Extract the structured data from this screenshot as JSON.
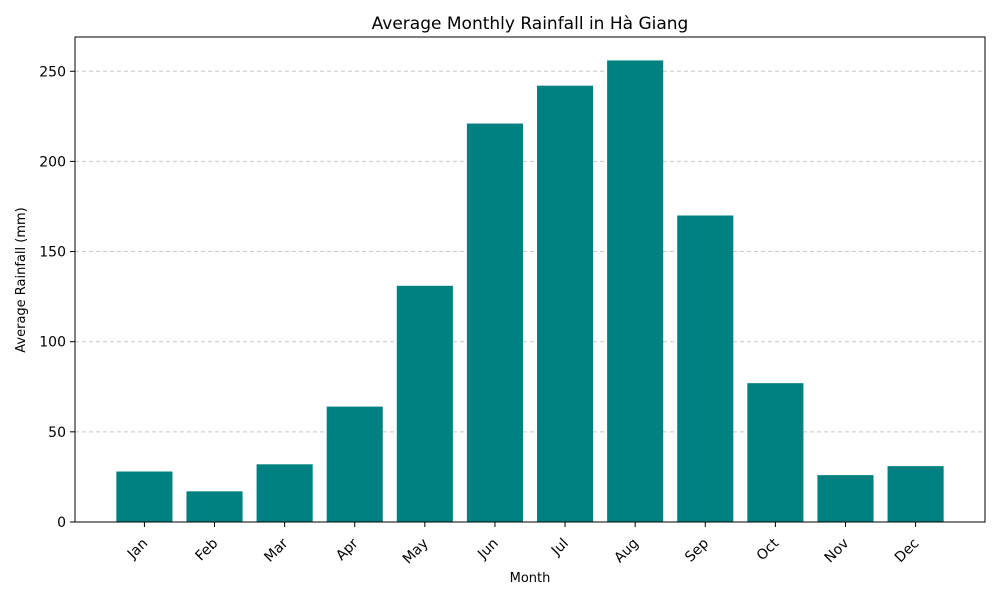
{
  "chart_data": {
    "type": "bar",
    "title": "Average Monthly Rainfall in Hà Giang",
    "xlabel": "Month",
    "ylabel": "Average Rainfall (mm)",
    "categories": [
      "Jan",
      "Feb",
      "Mar",
      "Apr",
      "May",
      "Jun",
      "Jul",
      "Aug",
      "Sep",
      "Oct",
      "Nov",
      "Dec"
    ],
    "values": [
      28,
      17,
      32,
      64,
      131,
      221,
      242,
      256,
      170,
      77,
      26,
      31
    ],
    "ylim": [
      0,
      269
    ],
    "yticks": [
      0,
      50,
      100,
      150,
      200,
      250
    ],
    "grid": "y dashed",
    "bar_color": "#008080"
  }
}
